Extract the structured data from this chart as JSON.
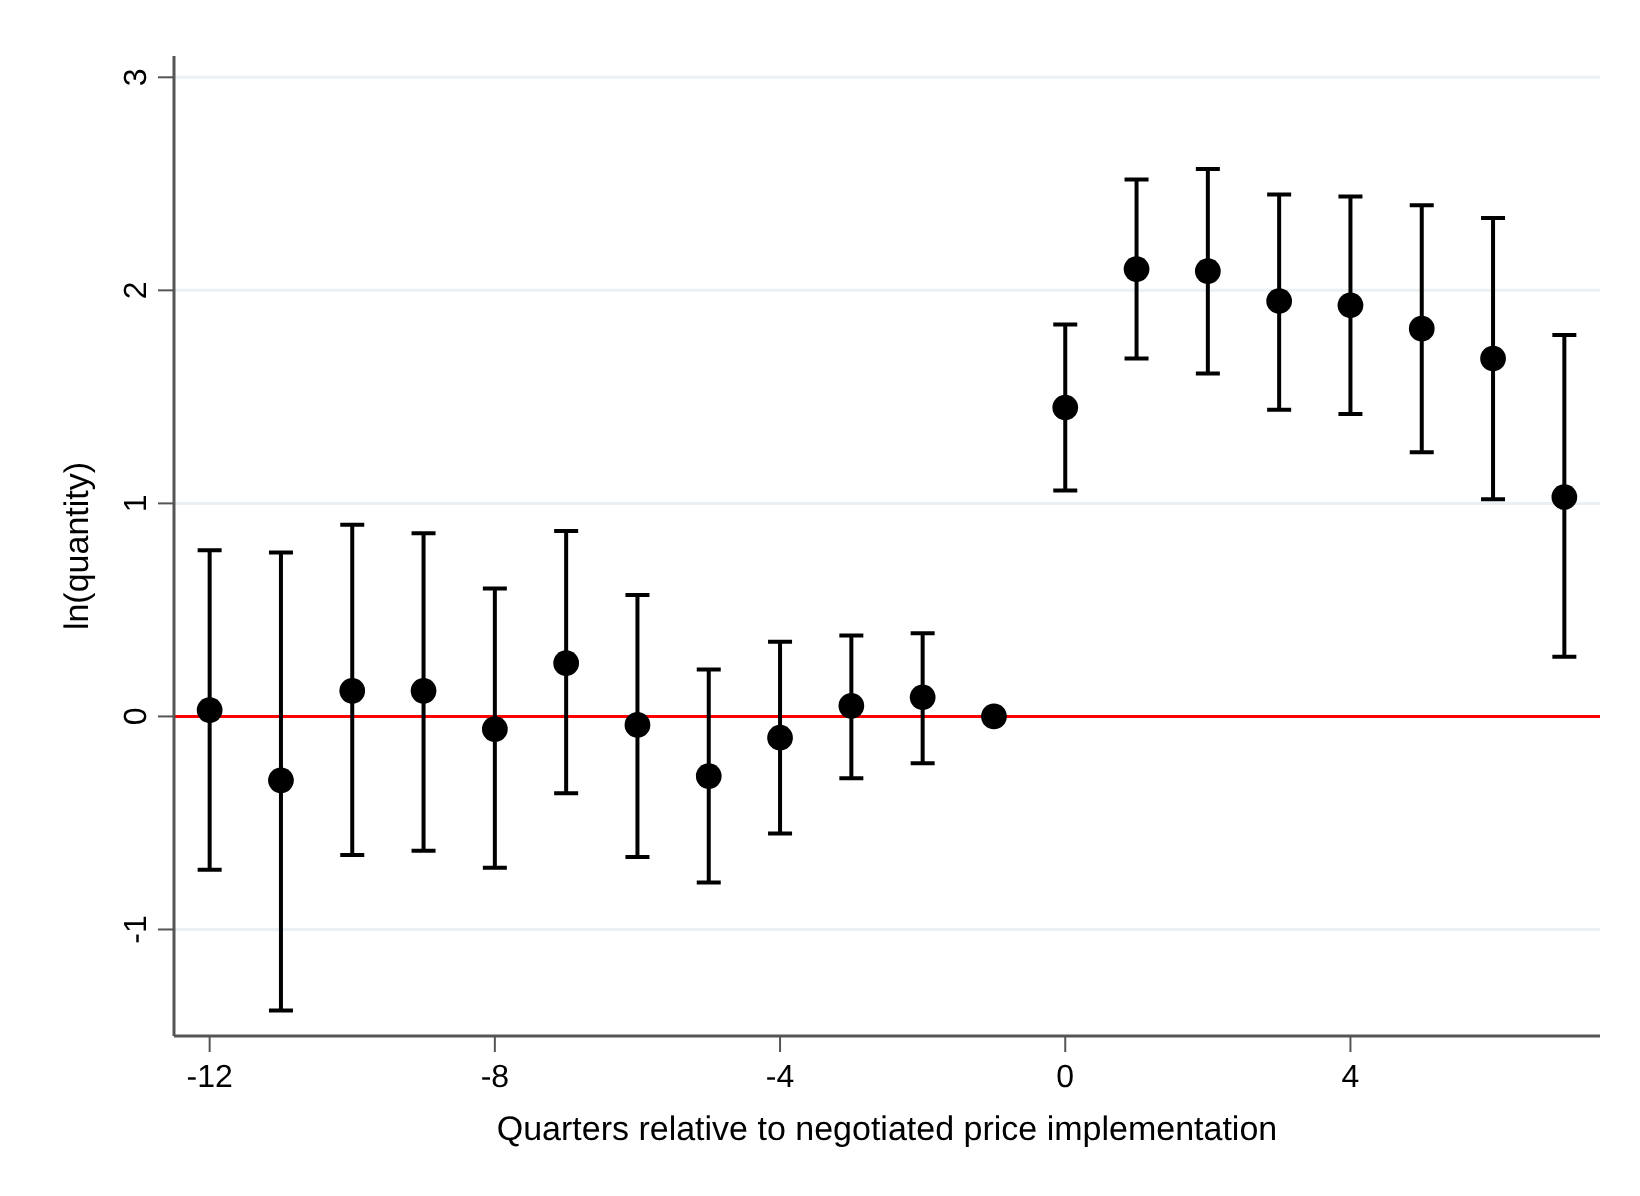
{
  "chart_data": {
    "type": "scatter",
    "xlabel": "Quarters relative to negotiated price implementation",
    "ylabel": "ln(quantity)",
    "x": [
      -12,
      -11,
      -10,
      -9,
      -8,
      -7,
      -6,
      -5,
      -4,
      -3,
      -2,
      -1,
      0,
      1,
      2,
      3,
      4,
      5,
      6,
      7
    ],
    "series": [
      {
        "color": "#000000",
        "values": [
          0.03,
          -0.3,
          0.12,
          0.12,
          -0.06,
          0.25,
          -0.04,
          -0.28,
          -0.1,
          0.05,
          0.09,
          0,
          1.45,
          2.1,
          2.09,
          1.95,
          1.93,
          1.82,
          1.68,
          1.03
        ],
        "errors": [
          [
            -0.72,
            0.78
          ],
          [
            -1.38,
            0.77
          ],
          [
            -0.65,
            0.9
          ],
          [
            -0.63,
            0.86
          ],
          [
            -0.71,
            0.6
          ],
          [
            -0.36,
            0.87
          ],
          [
            -0.66,
            0.57
          ],
          [
            -0.78,
            0.22
          ],
          [
            -0.55,
            0.35
          ],
          [
            -0.29,
            0.38
          ],
          [
            -0.22,
            0.39
          ],
          null,
          [
            1.06,
            1.84
          ],
          [
            1.68,
            2.52
          ],
          [
            1.61,
            2.57
          ],
          [
            1.44,
            2.45
          ],
          [
            1.42,
            2.44
          ],
          [
            1.24,
            2.4
          ],
          [
            1.02,
            2.34
          ],
          [
            0.28,
            1.79
          ]
        ]
      }
    ],
    "xlim": [
      -12.5,
      7.5
    ],
    "ylim": [
      -1.5,
      3.1
    ],
    "xticks": [
      -12,
      -8,
      -4,
      0,
      4
    ],
    "yticks": [
      -1,
      0,
      1,
      2,
      3
    ],
    "ref_lines": [
      {
        "axis": "y",
        "value": 0,
        "color": "#ff0000"
      }
    ],
    "grid": "y",
    "marker": "circle"
  }
}
